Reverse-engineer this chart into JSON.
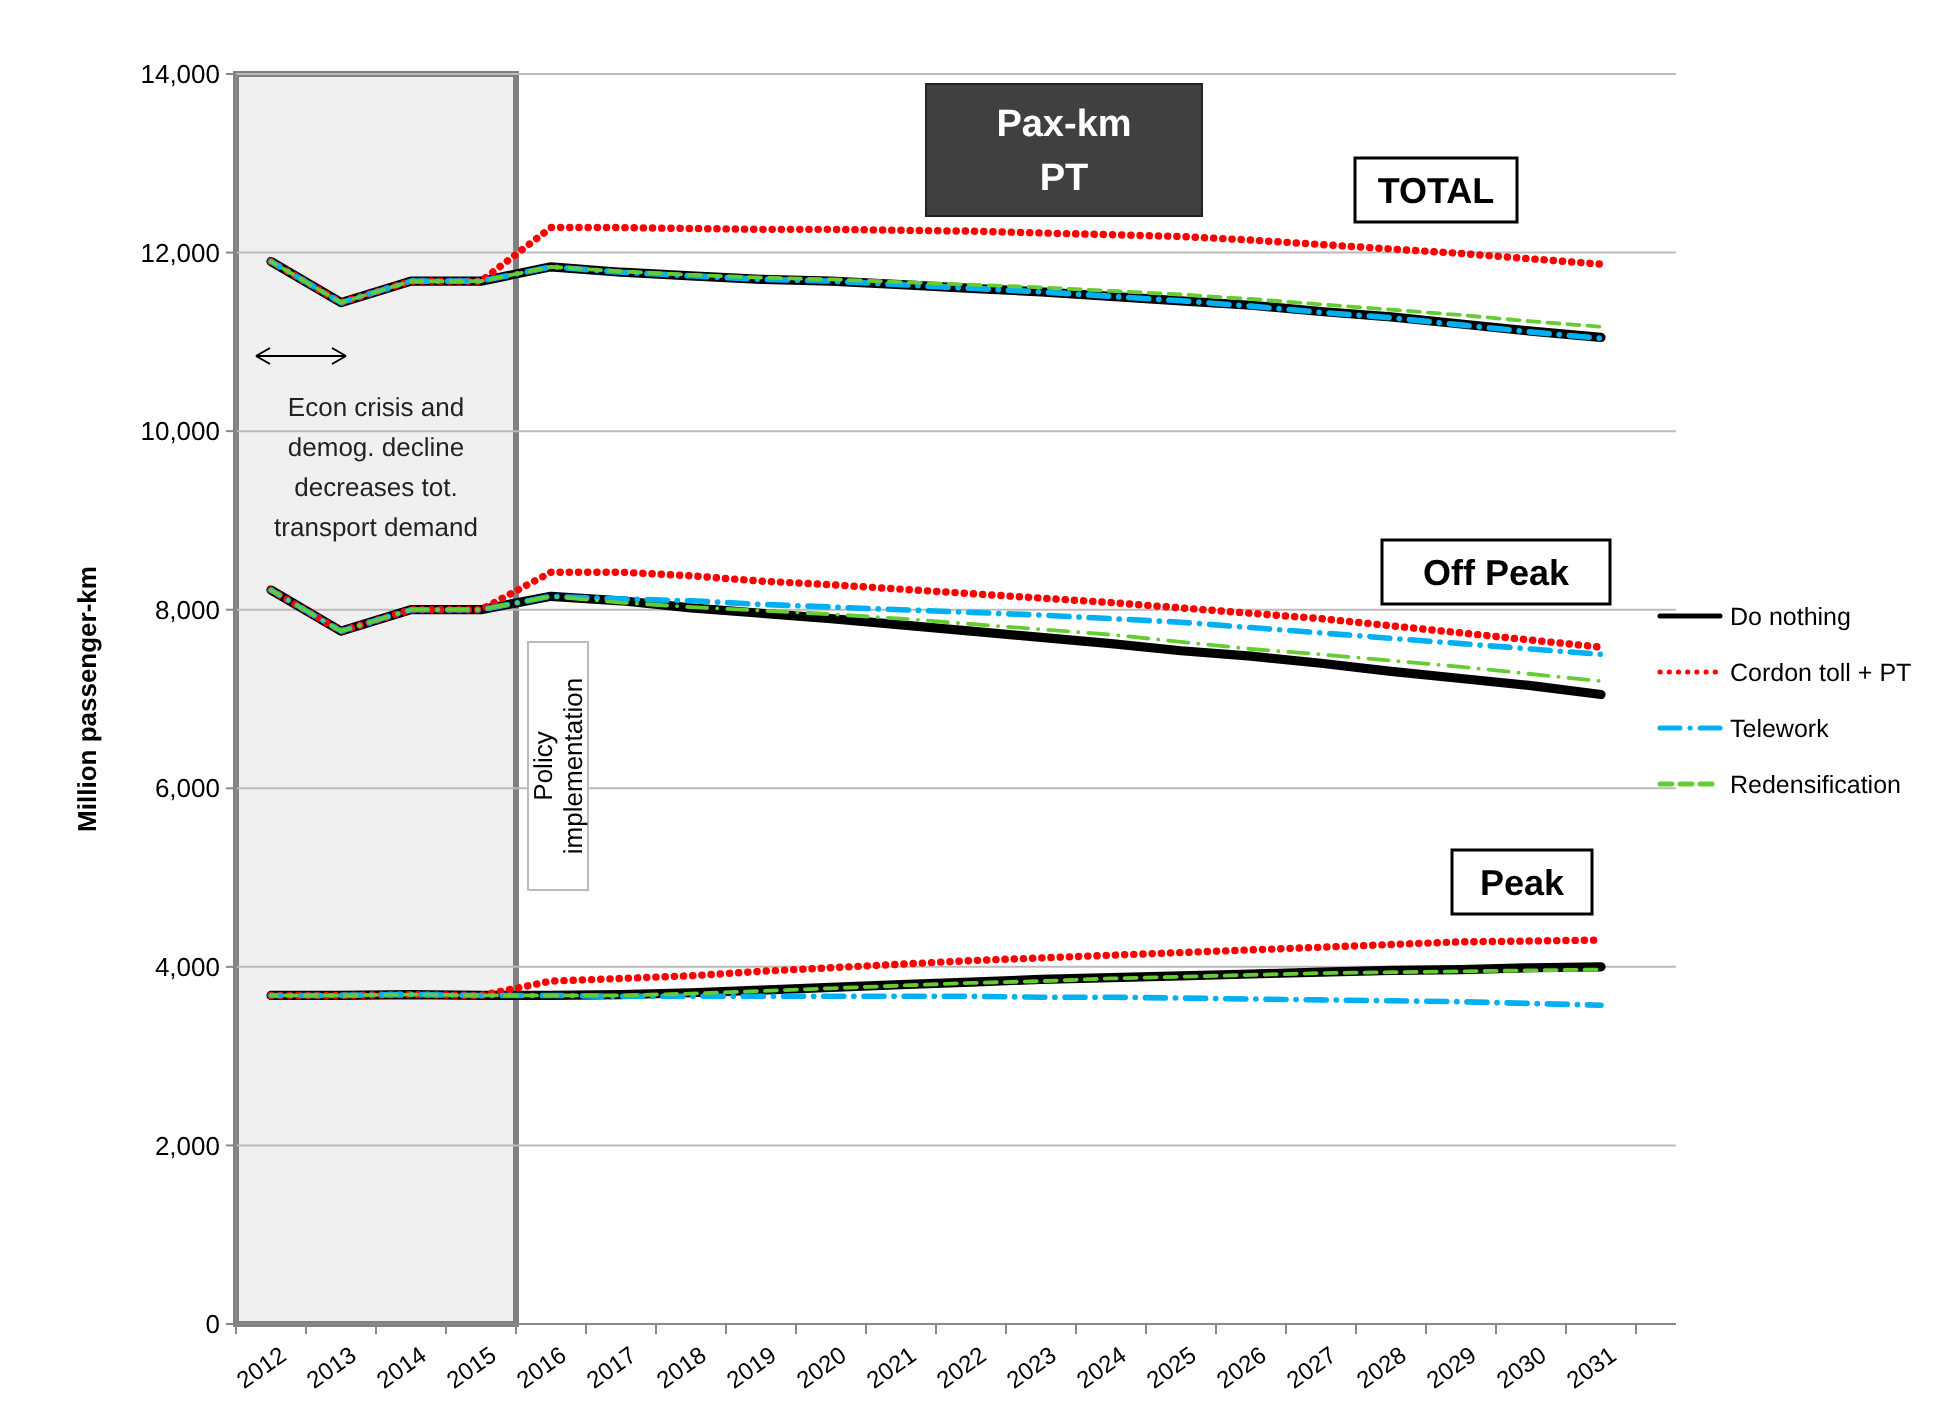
{
  "chart_data": {
    "type": "line",
    "title": "Pax-km PT",
    "ylabel": "Million passenger-km",
    "categories": [
      "2012",
      "2013",
      "2014",
      "2015",
      "2016",
      "2017",
      "2018",
      "2019",
      "2020",
      "2021",
      "2022",
      "2023",
      "2024",
      "2025",
      "2026",
      "2027",
      "2028",
      "2029",
      "2030",
      "2031"
    ],
    "ylim": [
      0,
      14000
    ],
    "yticks": [
      {
        "value": 0,
        "label": "0"
      },
      {
        "value": 2000,
        "label": "2,000"
      },
      {
        "value": 4000,
        "label": "4,000"
      },
      {
        "value": 6000,
        "label": "6,000"
      },
      {
        "value": 8000,
        "label": "8,000"
      },
      {
        "value": 10000,
        "label": "10,000"
      },
      {
        "value": 12000,
        "label": "12,000"
      },
      {
        "value": 14000,
        "label": "14,000"
      }
    ],
    "grid": "y",
    "legend": "right",
    "series": [
      {
        "name": "Do nothing",
        "color": "#000000",
        "line_style": "solid",
        "values": [
          11900,
          11440,
          11680,
          11680,
          11840,
          11780,
          11740,
          11700,
          11680,
          11640,
          11600,
          11560,
          11510,
          11460,
          11410,
          11340,
          11280,
          11200,
          11120,
          11050
        ]
      },
      {
        "name": "Cordon toll + PT",
        "color": "#ff0000",
        "line_style": "dotted",
        "values": [
          11900,
          11440,
          11680,
          11680,
          12280,
          12280,
          12270,
          12260,
          12260,
          12250,
          12240,
          12220,
          12200,
          12180,
          12140,
          12090,
          12040,
          11990,
          11930,
          11870
        ]
      },
      {
        "name": "Telework",
        "color": "#00b0f0",
        "line_style": "dashdot",
        "values": [
          11900,
          11440,
          11680,
          11680,
          11840,
          11780,
          11740,
          11700,
          11680,
          11640,
          11600,
          11560,
          11510,
          11460,
          11400,
          11330,
          11270,
          11190,
          11110,
          11040
        ]
      },
      {
        "name": "Redensification",
        "color": "#66cc33",
        "line_style": "dashed",
        "values": [
          11900,
          11440,
          11680,
          11680,
          11840,
          11790,
          11750,
          11720,
          11700,
          11670,
          11640,
          11610,
          11570,
          11530,
          11480,
          11420,
          11360,
          11300,
          11230,
          11170
        ]
      },
      {
        "color": "#000000",
        "line_style": "solid",
        "values": [
          8220,
          7760,
          8000,
          8000,
          8150,
          8100,
          8020,
          7960,
          7900,
          7830,
          7760,
          7690,
          7620,
          7540,
          7480,
          7400,
          7310,
          7230,
          7150,
          7050
        ]
      },
      {
        "color": "#ff0000",
        "line_style": "dotted",
        "values": [
          8220,
          7760,
          8000,
          8000,
          8420,
          8420,
          8380,
          8320,
          8280,
          8230,
          8180,
          8130,
          8080,
          8020,
          7960,
          7900,
          7820,
          7740,
          7660,
          7580
        ]
      },
      {
        "color": "#00b0f0",
        "line_style": "dashdot",
        "values": [
          8220,
          7760,
          8000,
          8000,
          8150,
          8120,
          8100,
          8060,
          8030,
          8000,
          7970,
          7940,
          7900,
          7860,
          7800,
          7740,
          7680,
          7620,
          7560,
          7500
        ]
      },
      {
        "color": "#66cc33",
        "line_style": "dashdot",
        "values": [
          8220,
          7760,
          8000,
          8000,
          8150,
          8080,
          8030,
          7990,
          7950,
          7900,
          7840,
          7780,
          7720,
          7640,
          7560,
          7500,
          7430,
          7360,
          7280,
          7200
        ]
      },
      {
        "color": "#000000",
        "line_style": "solid",
        "values": [
          3680,
          3680,
          3690,
          3680,
          3680,
          3690,
          3710,
          3740,
          3770,
          3800,
          3830,
          3860,
          3880,
          3900,
          3920,
          3940,
          3960,
          3970,
          3990,
          4000
        ]
      },
      {
        "color": "#ff0000",
        "line_style": "dotted",
        "values": [
          3680,
          3680,
          3690,
          3680,
          3840,
          3870,
          3900,
          3950,
          3990,
          4030,
          4070,
          4100,
          4130,
          4160,
          4190,
          4220,
          4250,
          4280,
          4290,
          4300
        ]
      },
      {
        "color": "#00b0f0",
        "line_style": "dashdot",
        "values": [
          3680,
          3680,
          3690,
          3680,
          3680,
          3670,
          3670,
          3670,
          3670,
          3670,
          3670,
          3660,
          3660,
          3650,
          3640,
          3630,
          3620,
          3610,
          3590,
          3570
        ]
      },
      {
        "color": "#66cc33",
        "line_style": "dashed",
        "values": [
          3680,
          3680,
          3690,
          3680,
          3680,
          3680,
          3700,
          3730,
          3760,
          3790,
          3820,
          3840,
          3870,
          3890,
          3910,
          3930,
          3940,
          3950,
          3960,
          3970
        ]
      }
    ],
    "bands": [
      {
        "axis": "x",
        "from": "2012",
        "to": "2015",
        "label": "Econ crisis and demog. decline decreases  tot. transport demand",
        "color": "#f0f0f0"
      }
    ],
    "annotations": [
      "TOTAL",
      "Off Peak",
      "Peak",
      "Policy implementation"
    ]
  }
}
